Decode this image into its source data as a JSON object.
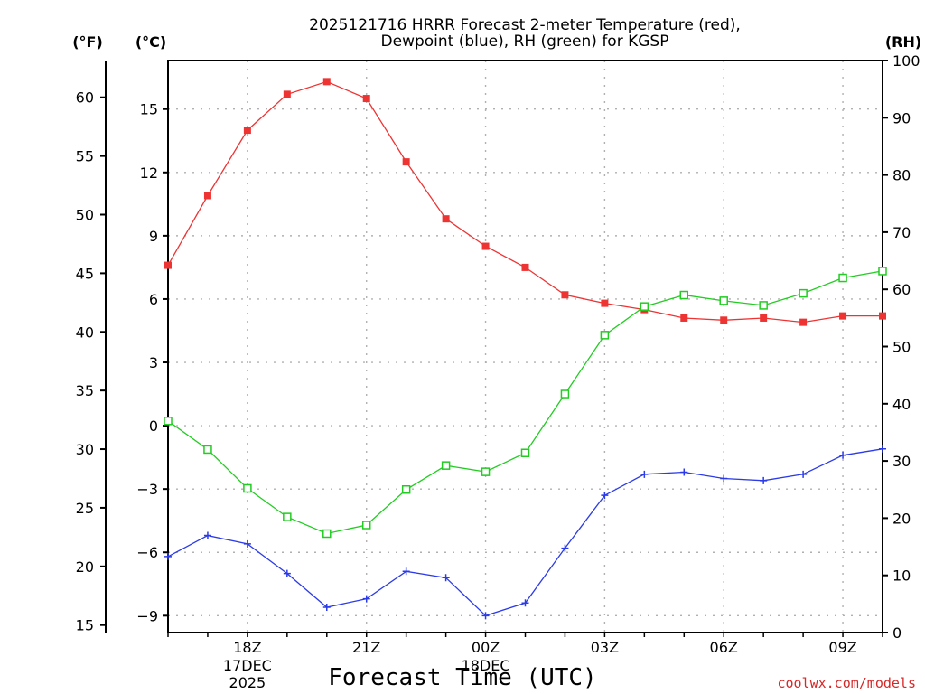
{
  "chart_data": {
    "type": "line",
    "title": [
      "2025121716 HRRR Forecast 2-meter Temperature (red),",
      "Dewpoint (blue), RH (green) for KGSP"
    ],
    "xlabel": "Forecast Time (UTC)",
    "credit": "coolwx.com/models",
    "unit_labels": {
      "fahrenheit": "(°F)",
      "celsius": "(°C)",
      "rh": "(RH)"
    },
    "x": [
      "16Z",
      "17Z",
      "18Z",
      "19Z",
      "20Z",
      "21Z",
      "22Z",
      "23Z",
      "00Z",
      "01Z",
      "02Z",
      "03Z",
      "04Z",
      "05Z",
      "06Z",
      "07Z",
      "08Z",
      "09Z",
      "10Z"
    ],
    "x_ticks": [
      {
        "label": "18Z",
        "index": 2,
        "sub": [
          "17DEC",
          "2025"
        ]
      },
      {
        "label": "21Z",
        "index": 5,
        "sub": []
      },
      {
        "label": "00Z",
        "index": 8,
        "sub": [
          "18DEC"
        ]
      },
      {
        "label": "03Z",
        "index": 11,
        "sub": []
      },
      {
        "label": "06Z",
        "index": 14,
        "sub": []
      },
      {
        "label": "09Z",
        "index": 17,
        "sub": []
      }
    ],
    "axes": {
      "celsius": {
        "ylim": [
          -9.8,
          17.3
        ],
        "ticks": [
          -9,
          -6,
          -3,
          0,
          3,
          6,
          9,
          12,
          15
        ]
      },
      "fahrenheit": {
        "ticks": [
          15,
          20,
          25,
          30,
          35,
          40,
          45,
          50,
          55,
          60
        ]
      },
      "rh": {
        "ylim": [
          0,
          100
        ],
        "ticks": [
          0,
          10,
          20,
          30,
          40,
          50,
          60,
          70,
          80,
          90,
          100
        ]
      }
    },
    "series": [
      {
        "name": "2-meter Temperature",
        "axis": "celsius",
        "color": "#ee3333",
        "marker": "filled-square",
        "values": [
          7.6,
          10.9,
          14.0,
          15.7,
          16.3,
          15.5,
          12.5,
          9.8,
          8.5,
          7.5,
          6.2,
          5.8,
          5.5,
          5.1,
          5.0,
          5.1,
          4.9,
          5.2,
          5.2
        ]
      },
      {
        "name": "Dewpoint",
        "axis": "celsius",
        "color": "#2b3be8",
        "marker": "plus",
        "values": [
          -6.2,
          -5.2,
          -5.6,
          -7.0,
          -8.6,
          -8.2,
          -6.9,
          -7.2,
          -9.0,
          -8.4,
          -5.8,
          -3.3,
          -2.3,
          -2.2,
          -2.5,
          -2.6,
          -2.3,
          -1.4,
          -1.1
        ]
      },
      {
        "name": "RH",
        "axis": "rh",
        "color": "#22cc22",
        "marker": "open-square",
        "values": [
          37,
          32,
          25.2,
          20.2,
          17.3,
          18.8,
          25,
          29.2,
          28.1,
          31.4,
          41.7,
          52,
          57,
          59,
          58,
          57.2,
          59.3,
          62,
          63.2
        ]
      }
    ]
  }
}
